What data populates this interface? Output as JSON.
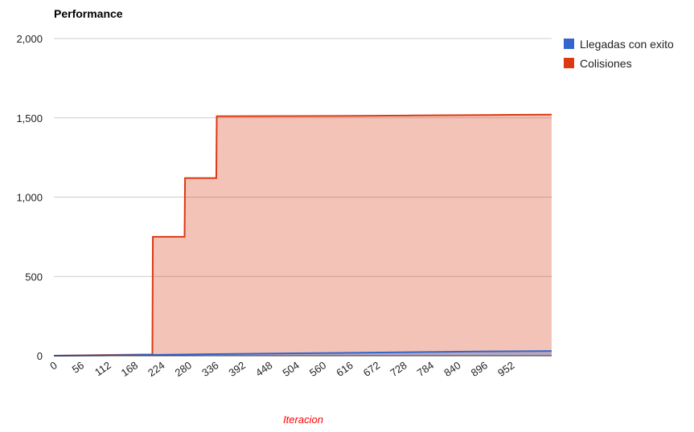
{
  "chart_data": {
    "type": "area",
    "title": "Performance",
    "xlabel": "Iteracion",
    "ylabel": "",
    "ylim": [
      0,
      2000
    ],
    "xlim": [
      0,
      1036
    ],
    "y_ticks": [
      "0",
      "500",
      "1,000",
      "1,500",
      "2,000"
    ],
    "y_tick_values": [
      0,
      500,
      1000,
      1500,
      2000
    ],
    "x_ticks": [
      "0",
      "56",
      "112",
      "168",
      "224",
      "280",
      "336",
      "392",
      "448",
      "504",
      "560",
      "616",
      "672",
      "728",
      "784",
      "840",
      "896",
      "952"
    ],
    "x_tick_values": [
      0,
      56,
      112,
      168,
      224,
      280,
      336,
      392,
      448,
      504,
      560,
      616,
      672,
      728,
      784,
      840,
      896,
      952
    ],
    "legend_position": "right",
    "grid": true,
    "series": [
      {
        "name": "Llegadas con exito",
        "color": "#3366cc",
        "x": [
          0,
          100,
          200,
          300,
          400,
          500,
          600,
          700,
          800,
          900,
          1036
        ],
        "values": [
          0,
          2,
          5,
          9,
          12,
          15,
          18,
          21,
          24,
          27,
          30
        ]
      },
      {
        "name": "Colisiones",
        "color": "#dc3912",
        "x": [
          0,
          120,
          205,
          206,
          272,
          273,
          338,
          339,
          600,
          750,
          900,
          1036
        ],
        "values": [
          0,
          5,
          8,
          750,
          750,
          1120,
          1120,
          1510,
          1512,
          1515,
          1518,
          1520
        ]
      }
    ]
  }
}
